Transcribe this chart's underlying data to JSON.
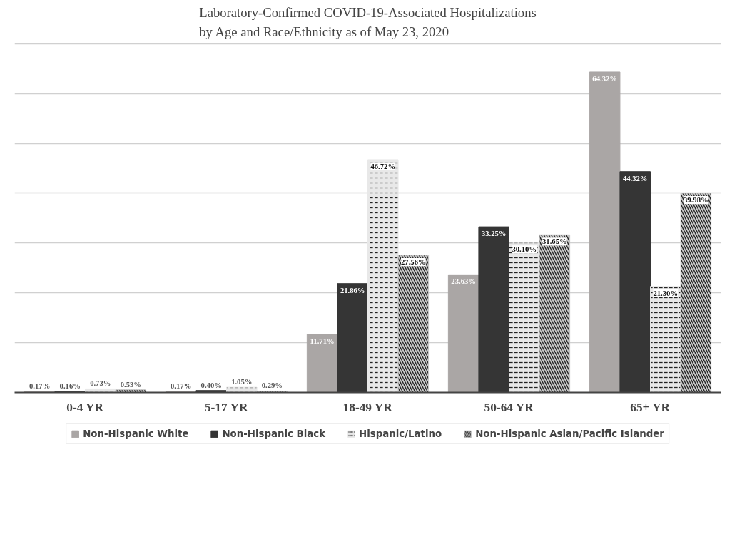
{
  "chart_data": {
    "type": "bar",
    "title": "Laboratory-Confirmed COVID-19-Associated Hospitalizations\nby Age and Race/Ethnicity as of May 23, 2020",
    "categories": [
      "0-4 YR",
      "5-17 YR",
      "18-49 YR",
      "50-64 YR",
      "65+ YR"
    ],
    "series": [
      {
        "name": "Non-Hispanic White",
        "color": "#aaa6a5",
        "values": [
          0.17,
          0.17,
          11.71,
          23.63,
          64.32
        ],
        "value_labels": [
          "0.17%",
          "0.17%",
          "11.71%",
          "23.63%",
          "64.32%"
        ]
      },
      {
        "name": "Non-Hispanic Black",
        "color": "#353535",
        "values": [
          0.16,
          0.4,
          21.86,
          33.25,
          44.32
        ],
        "value_labels": [
          "0.16%",
          "0.40%",
          "21.86%",
          "33.25%",
          "44.32%"
        ]
      },
      {
        "name": "Hispanic/Latino",
        "color": "#e8e8e8",
        "values": [
          0.73,
          1.05,
          46.72,
          30.1,
          21.3
        ],
        "value_labels": [
          "0.73%",
          "1.05%",
          "46.72%",
          "30.10%",
          "21.30%"
        ]
      },
      {
        "name": "Non-Hispanic Asian/Pacific Islander",
        "color": "#c8c8c8",
        "values": [
          0.53,
          0.29,
          27.56,
          31.65,
          39.98
        ],
        "value_labels": [
          "0.53%",
          "0.29%",
          "27.56%",
          "31.65%",
          "39.98%"
        ]
      }
    ],
    "tick_labels": "x",
    "grid": "y",
    "legend": "bottom"
  }
}
